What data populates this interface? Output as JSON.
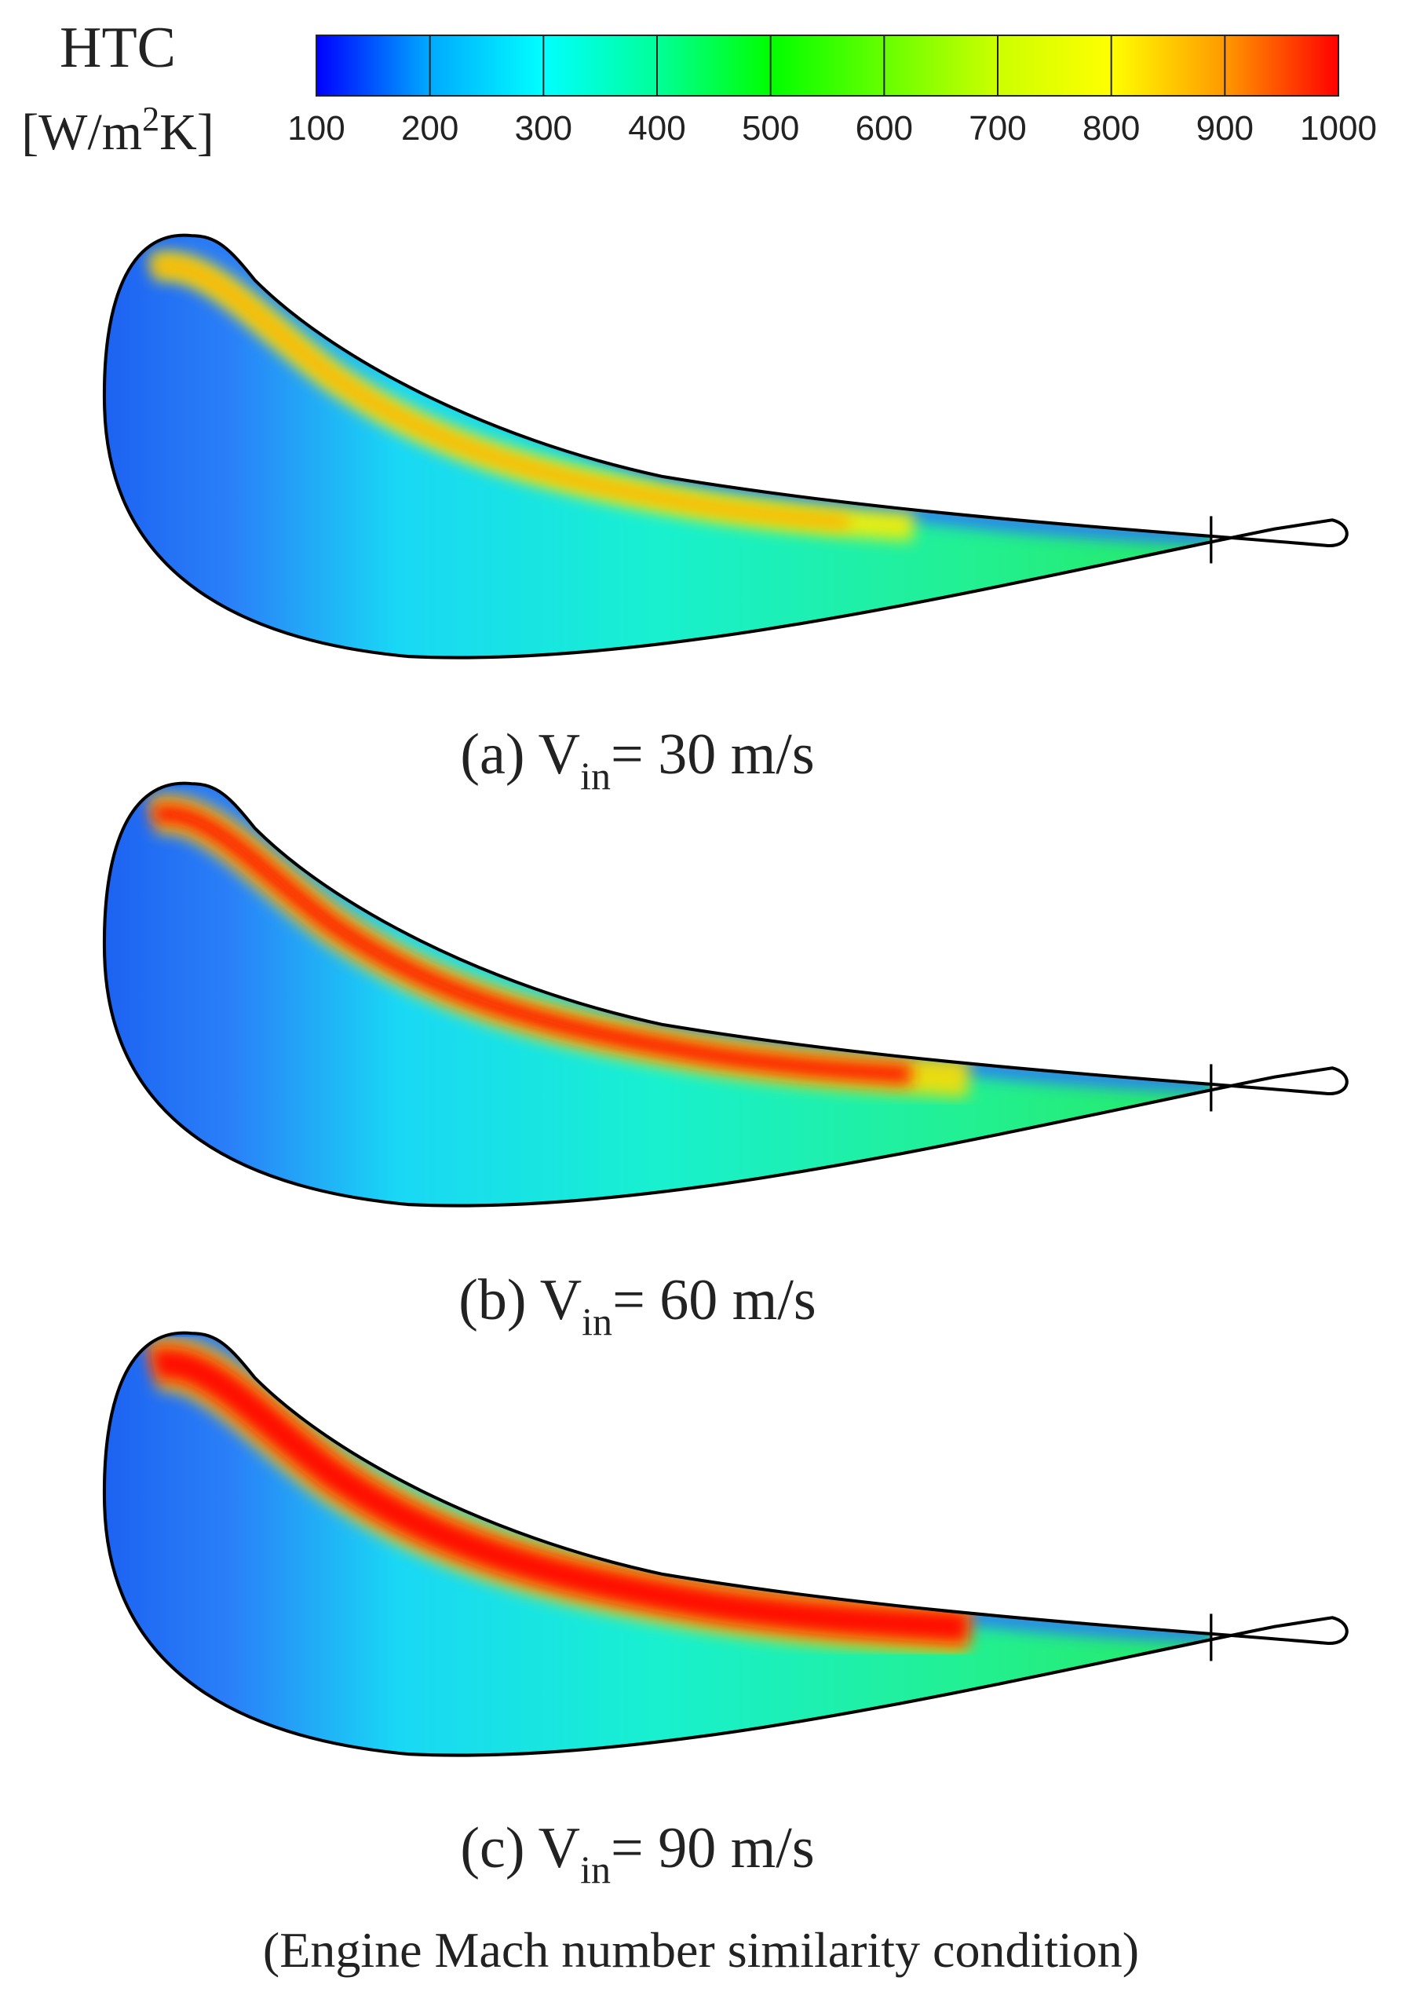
{
  "colorbar": {
    "title": "HTC",
    "unit_parts": [
      "[W/m",
      "2",
      "K]"
    ],
    "lim": [
      100,
      1000
    ],
    "ticks": [
      100,
      200,
      300,
      400,
      500,
      600,
      700,
      800,
      900,
      1000
    ],
    "colors": [
      "#0000ff",
      "#00aaff",
      "#00ffff",
      "#00ff99",
      "#00ff00",
      "#66ff00",
      "#ccff00",
      "#ffff00",
      "#ff9900",
      "#ff0000"
    ]
  },
  "panels": [
    {
      "caption_parts": [
        "(a) V",
        "in",
        "= 30 m/s"
      ]
    },
    {
      "caption_parts": [
        "(b) V",
        "in",
        "= 60 m/s"
      ]
    },
    {
      "caption_parts": [
        "(c) V",
        "in",
        "= 90 m/s"
      ]
    }
  ],
  "footer": "(Engine Mach number similarity condition)"
}
